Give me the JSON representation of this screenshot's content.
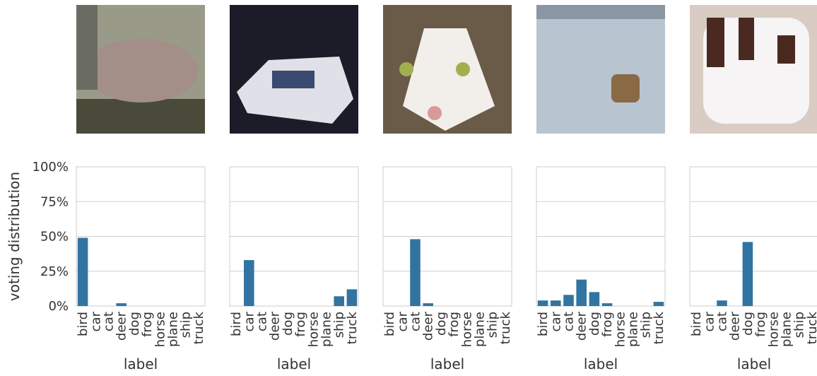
{
  "chart_data": [
    {
      "type": "bar",
      "ylabel": "voting distribution",
      "xlabel": "label",
      "categories": [
        "bird",
        "car",
        "cat",
        "deer",
        "dog",
        "frog",
        "horse",
        "plane",
        "ship",
        "truck"
      ],
      "values": [
        49,
        0,
        0,
        2,
        0,
        0,
        0,
        0,
        0,
        0
      ],
      "color": "#3274a1",
      "ylim": [
        0,
        100
      ],
      "yticks": [
        {
          "value": 0,
          "label": "0%"
        },
        {
          "value": 25,
          "label": "25%"
        },
        {
          "value": 50,
          "label": "50%"
        },
        {
          "value": 75,
          "label": "75%"
        },
        {
          "value": 100,
          "label": "100%"
        }
      ],
      "grid": true
    },
    {
      "type": "bar",
      "xlabel": "label",
      "categories": [
        "bird",
        "car",
        "cat",
        "deer",
        "dog",
        "frog",
        "horse",
        "plane",
        "ship",
        "truck"
      ],
      "values": [
        0,
        33,
        0,
        0,
        0,
        0,
        0,
        0,
        7,
        12
      ],
      "color": "#3274a1",
      "ylim": [
        0,
        100
      ],
      "yticks": [
        0,
        25,
        50,
        75,
        100
      ],
      "grid": true
    },
    {
      "type": "bar",
      "xlabel": "label",
      "categories": [
        "bird",
        "car",
        "cat",
        "deer",
        "dog",
        "frog",
        "horse",
        "plane",
        "ship",
        "truck"
      ],
      "values": [
        0,
        0,
        48,
        2,
        0,
        0,
        0,
        0,
        0,
        0
      ],
      "color": "#3274a1",
      "ylim": [
        0,
        100
      ],
      "yticks": [
        0,
        25,
        50,
        75,
        100
      ],
      "grid": true
    },
    {
      "type": "bar",
      "xlabel": "label",
      "categories": [
        "bird",
        "car",
        "cat",
        "deer",
        "dog",
        "frog",
        "horse",
        "plane",
        "ship",
        "truck"
      ],
      "values": [
        4,
        4,
        8,
        19,
        10,
        2,
        0,
        0,
        0,
        3
      ],
      "color": "#3274a1",
      "ylim": [
        0,
        100
      ],
      "yticks": [
        0,
        25,
        50,
        75,
        100
      ],
      "grid": true
    },
    {
      "type": "bar",
      "xlabel": "label",
      "categories": [
        "bird",
        "car",
        "cat",
        "deer",
        "dog",
        "frog",
        "horse",
        "plane",
        "ship",
        "truck"
      ],
      "values": [
        0,
        0,
        4,
        0,
        46,
        0,
        0,
        0,
        0,
        0
      ],
      "color": "#3274a1",
      "ylim": [
        0,
        100
      ],
      "yticks": [
        0,
        25,
        50,
        75,
        100
      ],
      "grid": true
    }
  ]
}
